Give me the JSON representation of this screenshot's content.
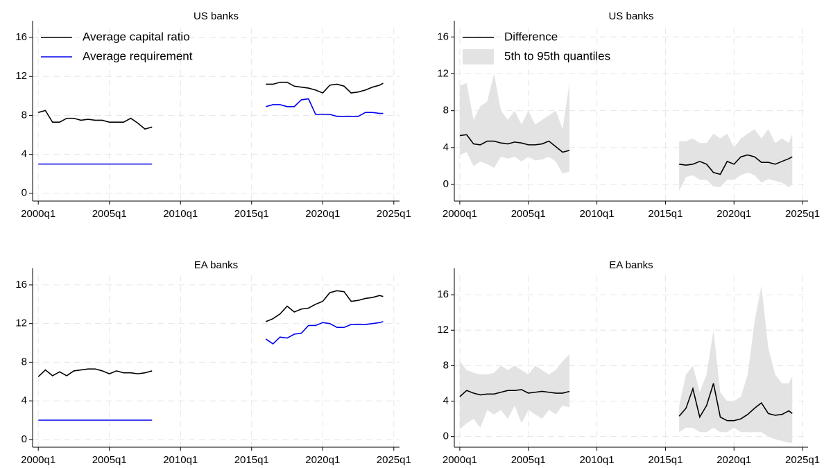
{
  "chart_data": [
    {
      "type": "line",
      "title": "US banks",
      "x": [
        2000,
        2000.5,
        2001,
        2001.5,
        2002,
        2002.5,
        2003,
        2003.5,
        2004,
        2004.5,
        2005,
        2005.5,
        2006,
        2006.5,
        2007,
        2007.5,
        2008,
        null,
        2016,
        2016.5,
        2017,
        2017.5,
        2018,
        2018.5,
        2019,
        2019.5,
        2020,
        2020.5,
        2021,
        2021.5,
        2022,
        2022.5,
        2023,
        2023.5,
        2024,
        2024.25
      ],
      "xlim": [
        1999.6,
        2025.4
      ],
      "xticks": [
        {
          "value": 2000,
          "label": "2000q1"
        },
        {
          "value": 2005,
          "label": "2005q1"
        },
        {
          "value": 2010,
          "label": "2010q1"
        },
        {
          "value": 2015,
          "label": "2015q1"
        },
        {
          "value": 2020,
          "label": "2020q1"
        },
        {
          "value": 2025,
          "label": "2025q1"
        }
      ],
      "ylim": [
        -0.8,
        17
      ],
      "yticks": [
        0,
        4,
        8,
        12,
        16
      ],
      "grid": true,
      "legend": "top-left",
      "series": [
        {
          "name": "Average capital ratio",
          "color": "#000000",
          "values": [
            8.3,
            8.5,
            7.3,
            7.3,
            7.7,
            7.7,
            7.5,
            7.6,
            7.5,
            7.5,
            7.3,
            7.3,
            7.3,
            7.7,
            7.2,
            6.6,
            6.8,
            null,
            11.2,
            11.2,
            11.4,
            11.4,
            11.0,
            10.9,
            10.8,
            10.6,
            10.3,
            11.1,
            11.2,
            11.0,
            10.3,
            10.4,
            10.6,
            10.9,
            11.1,
            11.3
          ]
        },
        {
          "name": "Average requirement",
          "color": "#0000ee",
          "values": [
            3,
            3,
            3,
            3,
            3,
            3,
            3,
            3,
            3,
            3,
            3,
            3,
            3,
            3,
            3,
            3,
            3,
            null,
            8.9,
            9.1,
            9.1,
            8.9,
            8.9,
            9.6,
            9.7,
            8.1,
            8.1,
            8.1,
            7.9,
            7.9,
            7.9,
            7.9,
            8.3,
            8.3,
            8.2,
            8.2
          ]
        }
      ]
    },
    {
      "type": "line",
      "title": "US banks",
      "x": [
        2000,
        2000.5,
        2001,
        2001.5,
        2002,
        2002.5,
        2003,
        2003.5,
        2004,
        2004.5,
        2005,
        2005.5,
        2006,
        2006.5,
        2007,
        2007.5,
        2008,
        null,
        2016,
        2016.5,
        2017,
        2017.5,
        2018,
        2018.5,
        2019,
        2019.5,
        2020,
        2020.5,
        2021,
        2021.5,
        2022,
        2022.5,
        2023,
        2023.5,
        2024,
        2024.25
      ],
      "xlim": [
        1999.6,
        2025.4
      ],
      "xticks": [
        {
          "value": 2000,
          "label": "2000q1"
        },
        {
          "value": 2005,
          "label": "2005q1"
        },
        {
          "value": 2010,
          "label": "2010q1"
        },
        {
          "value": 2015,
          "label": "2015q1"
        },
        {
          "value": 2020,
          "label": "2020q1"
        },
        {
          "value": 2025,
          "label": "2025q1"
        }
      ],
      "ylim": [
        -1.8,
        17
      ],
      "yticks": [
        0,
        4,
        8,
        12,
        16
      ],
      "grid": true,
      "legend": "top-left",
      "series": [
        {
          "name": "Difference",
          "color": "#000000",
          "values": [
            5.3,
            5.4,
            4.4,
            4.3,
            4.7,
            4.7,
            4.5,
            4.4,
            4.6,
            4.5,
            4.3,
            4.3,
            4.4,
            4.7,
            4.1,
            3.5,
            3.7,
            null,
            2.2,
            2.1,
            2.2,
            2.5,
            2.2,
            1.3,
            1.1,
            2.5,
            2.2,
            3.0,
            3.2,
            3.0,
            2.4,
            2.4,
            2.2,
            2.5,
            2.8,
            3.0
          ]
        }
      ],
      "band": {
        "name": "5th to 95th quantiles",
        "color": "#e3e3e3",
        "low": [
          3.2,
          3.5,
          2.0,
          2.5,
          2.2,
          1.8,
          3.0,
          2.8,
          3.0,
          2.5,
          3.0,
          2.6,
          2.7,
          3.0,
          2.5,
          1.2,
          1.4,
          null,
          -0.7,
          0.8,
          1.0,
          0.5,
          0.5,
          -0.2,
          -0.3,
          0.5,
          0.5,
          1.0,
          1.3,
          1.0,
          0.2,
          0.6,
          0.4,
          0.2,
          -0.3,
          0.0
        ],
        "high": [
          10.7,
          11.0,
          7.0,
          8.5,
          9.0,
          12.0,
          8.0,
          7.0,
          8.0,
          6.5,
          8.0,
          6.5,
          7.0,
          7.5,
          8.0,
          6.0,
          11.0,
          null,
          4.7,
          4.7,
          5.0,
          4.5,
          4.5,
          5.5,
          5.0,
          5.5,
          4.0,
          5.0,
          5.5,
          6.0,
          5.0,
          6.0,
          4.5,
          5.0,
          4.5,
          5.5
        ]
      }
    },
    {
      "type": "line",
      "title": "EA banks",
      "x": [
        2000,
        2000.5,
        2001,
        2001.5,
        2002,
        2002.5,
        2003,
        2003.5,
        2004,
        2004.5,
        2005,
        2005.5,
        2006,
        2006.5,
        2007,
        2007.5,
        2008,
        null,
        2016,
        2016.5,
        2017,
        2017.5,
        2018,
        2018.5,
        2019,
        2019.5,
        2020,
        2020.5,
        2021,
        2021.5,
        2022,
        2022.5,
        2023,
        2023.5,
        2024,
        2024.25
      ],
      "xlim": [
        1999.6,
        2025.4
      ],
      "xticks": [
        {
          "value": 2000,
          "label": "2000q1"
        },
        {
          "value": 2005,
          "label": "2005q1"
        },
        {
          "value": 2010,
          "label": "2010q1"
        },
        {
          "value": 2015,
          "label": "2015q1"
        },
        {
          "value": 2020,
          "label": "2020q1"
        },
        {
          "value": 2025,
          "label": "2025q1"
        }
      ],
      "ylim": [
        -0.8,
        17
      ],
      "yticks": [
        0,
        4,
        8,
        12,
        16
      ],
      "grid": true,
      "series": [
        {
          "color": "#000000",
          "values": [
            6.5,
            7.2,
            6.6,
            7.0,
            6.6,
            7.1,
            7.2,
            7.3,
            7.3,
            7.1,
            6.8,
            7.1,
            6.9,
            6.9,
            6.8,
            6.9,
            7.1,
            null,
            12.2,
            12.5,
            13.0,
            13.8,
            13.2,
            13.5,
            13.6,
            14.0,
            14.3,
            15.2,
            15.4,
            15.3,
            14.3,
            14.4,
            14.6,
            14.7,
            14.9,
            14.8
          ]
        },
        {
          "color": "#0000ee",
          "values": [
            2,
            2,
            2,
            2,
            2,
            2,
            2,
            2,
            2,
            2,
            2,
            2,
            2,
            2,
            2,
            2,
            2,
            null,
            10.4,
            9.9,
            10.6,
            10.5,
            10.9,
            11.0,
            11.8,
            11.8,
            12.1,
            12.0,
            11.6,
            11.6,
            11.9,
            11.9,
            11.9,
            12.0,
            12.1,
            12.2
          ]
        }
      ]
    },
    {
      "type": "line",
      "title": "EA banks",
      "x": [
        2000,
        2000.5,
        2001,
        2001.5,
        2002,
        2002.5,
        2003,
        2003.5,
        2004,
        2004.5,
        2005,
        2005.5,
        2006,
        2006.5,
        2007,
        2007.5,
        2008,
        null,
        2016,
        2016.5,
        2017,
        2017.5,
        2018,
        2018.5,
        2019,
        2019.5,
        2020,
        2020.5,
        2021,
        2021.5,
        2022,
        2022.5,
        2023,
        2023.5,
        2024,
        2024.25
      ],
      "xlim": [
        1999.6,
        2025.4
      ],
      "xticks": [
        {
          "value": 2000,
          "label": "2000q1"
        },
        {
          "value": 2005,
          "label": "2005q1"
        },
        {
          "value": 2010,
          "label": "2010q1"
        },
        {
          "value": 2015,
          "label": "2015q1"
        },
        {
          "value": 2020,
          "label": "2020q1"
        },
        {
          "value": 2025,
          "label": "2025q1"
        }
      ],
      "ylim": [
        -1.2,
        18.2
      ],
      "yticks": [
        0,
        4,
        8,
        12,
        16
      ],
      "grid": true,
      "series": [
        {
          "color": "#000000",
          "values": [
            4.5,
            5.2,
            4.9,
            4.7,
            4.8,
            4.8,
            5.0,
            5.2,
            5.2,
            5.3,
            4.9,
            5.0,
            5.1,
            5.0,
            4.9,
            4.9,
            5.1,
            null,
            2.3,
            3.2,
            5.4,
            2.2,
            3.5,
            6.0,
            2.2,
            1.8,
            1.8,
            2.0,
            2.5,
            3.2,
            3.8,
            2.6,
            2.4,
            2.5,
            2.9,
            2.6
          ]
        }
      ],
      "band": {
        "color": "#e3e3e3",
        "low": [
          0.8,
          1.5,
          2.0,
          1.0,
          3.0,
          2.5,
          3.0,
          2.0,
          3.5,
          1.5,
          3.0,
          2.5,
          2.0,
          3.0,
          2.5,
          3.5,
          3.3,
          null,
          0.5,
          1.0,
          1.0,
          0.5,
          0.5,
          1.0,
          0.5,
          0.5,
          1.0,
          0.5,
          0.5,
          0.5,
          0.5,
          0.0,
          -0.3,
          -0.5,
          -0.7,
          -0.7
        ],
        "high": [
          8.5,
          7.5,
          7.2,
          7.0,
          7.0,
          7.2,
          8.0,
          7.5,
          8.0,
          7.5,
          7.0,
          8.0,
          7.5,
          7.0,
          7.5,
          8.5,
          9.3,
          null,
          3.5,
          7.0,
          8.0,
          5.0,
          7.0,
          12.0,
          5.0,
          4.0,
          4.0,
          4.5,
          7.0,
          13.0,
          17.0,
          10.0,
          7.0,
          6.0,
          6.0,
          6.8
        ]
      }
    }
  ]
}
